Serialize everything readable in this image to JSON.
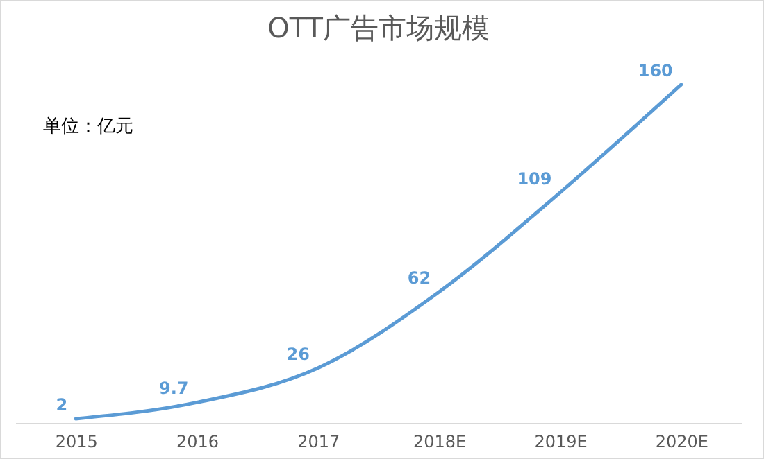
{
  "chart_data": {
    "type": "line",
    "title": "OTT广告市场规模",
    "annotations": [
      "单位：亿元"
    ],
    "categories": [
      "2015",
      "2016",
      "2017",
      "2018E",
      "2019E",
      "2020E"
    ],
    "series": [
      {
        "color": "#5b9bd5",
        "values": [
          2,
          9.7,
          26,
          62,
          109,
          160
        ]
      }
    ],
    "data_labels": true,
    "grid": false,
    "tick_labels": "x",
    "marker": "none"
  }
}
